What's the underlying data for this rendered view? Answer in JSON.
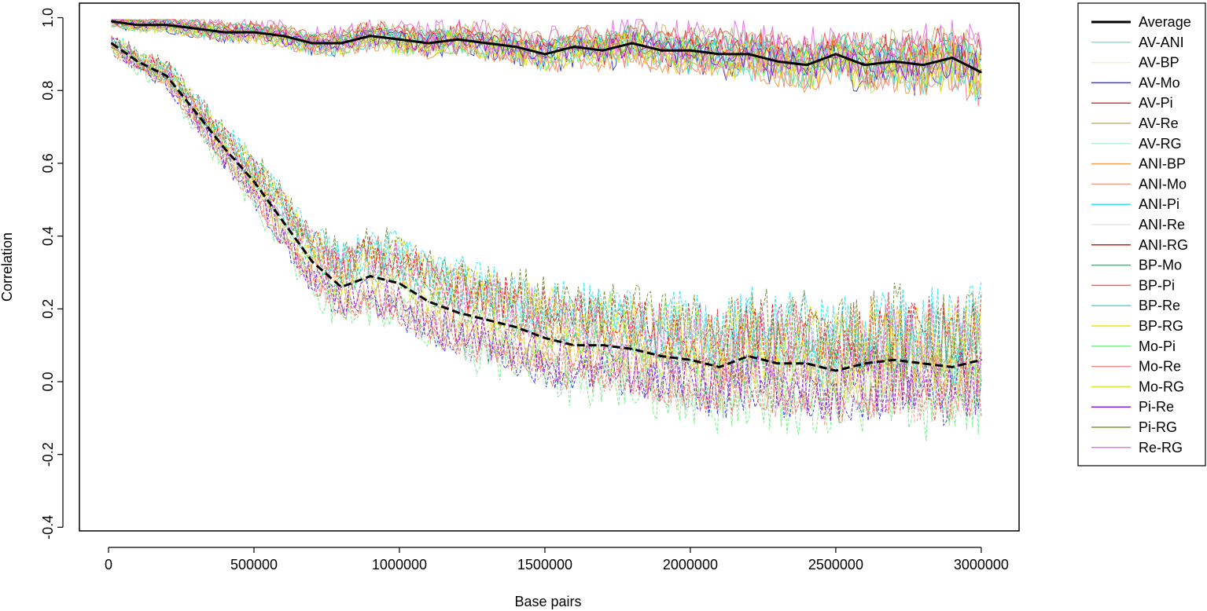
{
  "chart_data": {
    "type": "line",
    "xlabel": "Base pairs",
    "ylabel": "Correlation",
    "xlim": [
      -100000,
      3130000
    ],
    "ylim": [
      -0.41,
      1.04
    ],
    "x_ticks": [
      0,
      500000,
      1000000,
      1500000,
      2000000,
      2500000,
      3000000
    ],
    "x_tick_labels": [
      "0",
      "500000",
      "1000000",
      "1500000",
      "2000000",
      "2500000",
      "3000000"
    ],
    "y_ticks": [
      -0.4,
      -0.2,
      0.0,
      0.2,
      0.4,
      0.6,
      0.8,
      1.0
    ],
    "y_tick_labels": [
      "-0.4",
      "-0.2",
      "0.0",
      "0.2",
      "0.4",
      "0.6",
      "0.8",
      "1.0"
    ],
    "grid": false,
    "legend_position": "outside-right",
    "legend_labels": [
      "Average",
      "AV-ANI",
      "AV-BP",
      "AV-Mo",
      "AV-Pi",
      "AV-Re",
      "AV-RG",
      "ANI-BP",
      "ANI-Mo",
      "ANI-Pi",
      "ANI-Re",
      "ANI-RG",
      "BP-Mo",
      "BP-Pi",
      "BP-Re",
      "BP-RG",
      "Mo-Pi",
      "Mo-Re",
      "Mo-RG",
      "Pi-Re",
      "Pi-RG",
      "Re-RG"
    ],
    "colors": {
      "Average": "#000000",
      "AV-ANI": "#7fe6c8",
      "AV-BP": "#f5efc8",
      "AV-Mo": "#3c3cdc",
      "AV-Pi": "#dc3c3c",
      "AV-Re": "#c8b478",
      "AV-RG": "#b4f0dc",
      "ANI-BP": "#f0a050",
      "ANI-Mo": "#f0a08c",
      "ANI-Pi": "#32e6f0",
      "ANI-Re": "#e6e6e6",
      "ANI-RG": "#e61414",
      "BP-Mo": "#28c878",
      "BP-Pi": "#f06450",
      "BP-Re": "#50dcdc",
      "BP-RG": "#e6e614",
      "Mo-Pi": "#78f08c",
      "Mo-Re": "#f08c8c",
      "Mo-RG": "#dce632",
      "Pi-Re": "#8c1edc",
      "Pi-RG": "#78963c",
      "Re-RG": "#e678e6"
    },
    "x_series": [
      10000,
      100000,
      200000,
      300000,
      400000,
      500000,
      600000,
      700000,
      800000,
      900000,
      1000000,
      1100000,
      1200000,
      1300000,
      1400000,
      1500000,
      1600000,
      1700000,
      1800000,
      1900000,
      2000000,
      2100000,
      2200000,
      2300000,
      2400000,
      2500000,
      2600000,
      2700000,
      2800000,
      2900000,
      3000000
    ],
    "series": [
      {
        "name": "Average",
        "style": "solid",
        "values": [
          0.99,
          0.98,
          0.98,
          0.97,
          0.96,
          0.96,
          0.95,
          0.93,
          0.93,
          0.95,
          0.94,
          0.93,
          0.94,
          0.93,
          0.92,
          0.9,
          0.92,
          0.91,
          0.93,
          0.91,
          0.91,
          0.9,
          0.9,
          0.88,
          0.87,
          0.9,
          0.87,
          0.88,
          0.87,
          0.89,
          0.85
        ]
      },
      {
        "name": "Average",
        "style": "dashed",
        "values": [
          0.93,
          0.88,
          0.84,
          0.74,
          0.64,
          0.55,
          0.44,
          0.33,
          0.26,
          0.29,
          0.27,
          0.22,
          0.19,
          0.17,
          0.15,
          0.12,
          0.1,
          0.1,
          0.09,
          0.07,
          0.06,
          0.04,
          0.07,
          0.05,
          0.05,
          0.03,
          0.05,
          0.06,
          0.05,
          0.04,
          0.06
        ]
      }
    ]
  }
}
